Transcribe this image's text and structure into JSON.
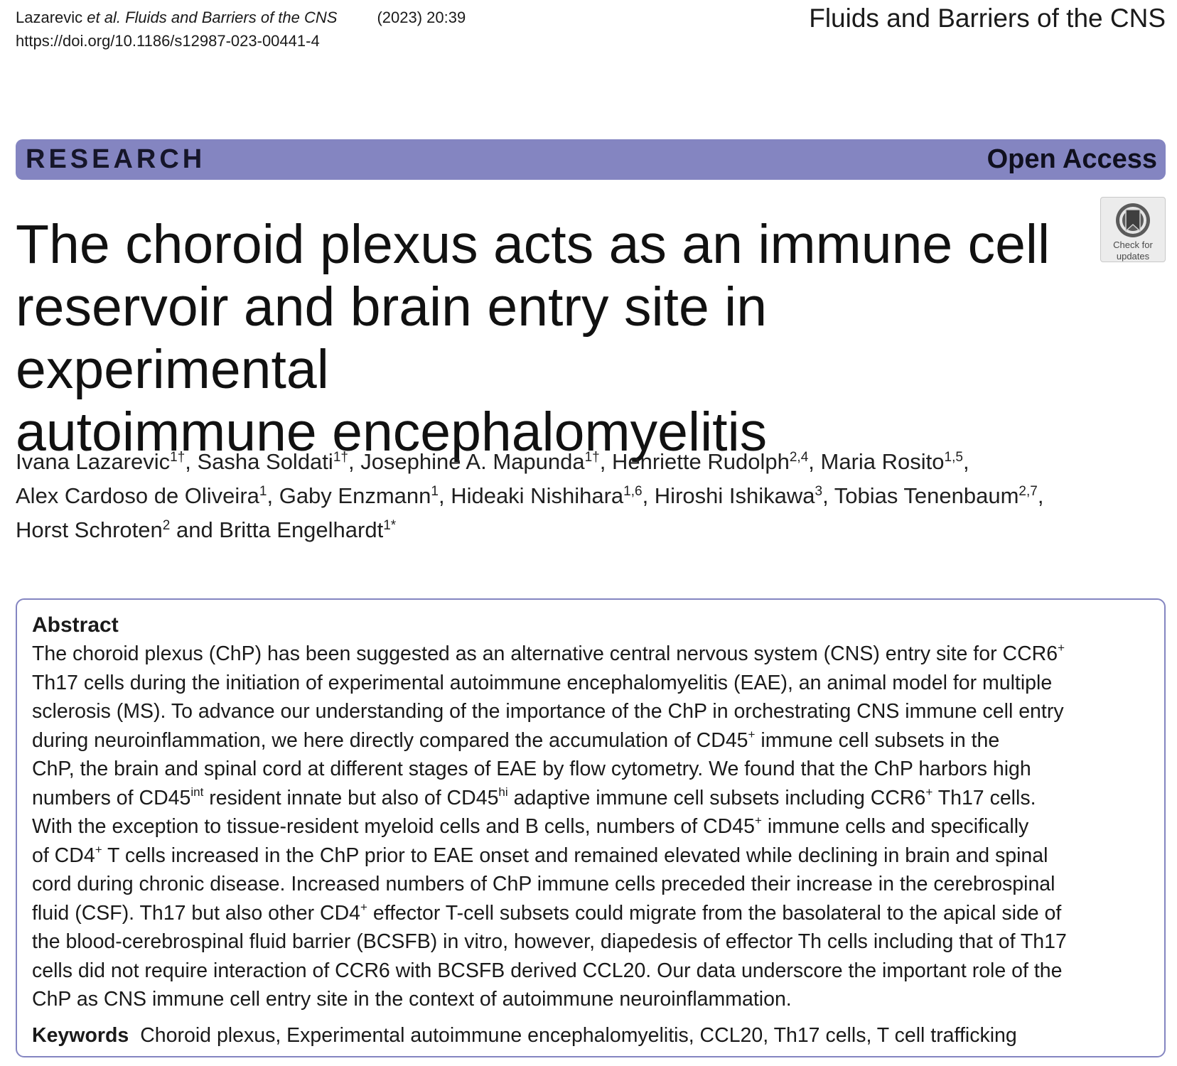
{
  "header": {
    "citation_authors": "Lazarevic ",
    "citation_etal": "et al.",
    "citation_journal": " Fluids and Barriers of the CNS",
    "citation_year": "(2023) 20:39",
    "doi": "https://doi.org/10.1186/s12987-023-00441-4",
    "journal_name": "Fluids and Barriers of the CNS"
  },
  "banner": {
    "type": "RESEARCH",
    "access": "Open Access",
    "color": "#8485c1"
  },
  "badge": {
    "icon": "check-for-updates-icon",
    "line1": "Check for",
    "line2": "updates"
  },
  "title": {
    "line1": "The choroid plexus acts as an immune cell",
    "line2": "reservoir and brain entry site in experimental",
    "line3": "autoimmune encephalomyelitis"
  },
  "authors": [
    {
      "name": "Ivana Lazarevic",
      "aff": "1†",
      "sep": ", "
    },
    {
      "name": "Sasha Soldati",
      "aff": "1†",
      "sep": ", "
    },
    {
      "name": "Josephine A. Mapunda",
      "aff": "1†",
      "sep": ", "
    },
    {
      "name": "Henriette Rudolph",
      "aff": "2,4",
      "sep": ", "
    },
    {
      "name": "Maria Rosito",
      "aff": "1,5",
      "sep": ", "
    },
    {
      "name": "Alex Cardoso de Oliveira",
      "aff": "1",
      "sep": ", "
    },
    {
      "name": "Gaby Enzmann",
      "aff": "1",
      "sep": ", "
    },
    {
      "name": "Hideaki Nishihara",
      "aff": "1,6",
      "sep": ", "
    },
    {
      "name": "Hiroshi Ishikawa",
      "aff": "3",
      "sep": ", "
    },
    {
      "name": "Tobias Tenenbaum",
      "aff": "2,7",
      "sep": ", "
    },
    {
      "name": "Horst Schroten",
      "aff": "2",
      "sep": " and "
    },
    {
      "name": "Britta Engelhardt",
      "aff": "1*",
      "sep": ""
    }
  ],
  "abstract": {
    "heading": "Abstract",
    "l1a": "The choroid plexus (ChP) has been suggested as an alternative central nervous system (CNS) entry site for CCR6",
    "l1sup": "+",
    "l2": "Th17 cells during the initiation of experimental autoimmune encephalomyelitis (EAE), an animal model for multiple",
    "l3": "sclerosis (MS). To advance our understanding of the importance of the ChP in orchestrating CNS immune cell entry",
    "l4a": "during neuroinflammation, we here directly compared the accumulation of CD45",
    "l4sup": "+",
    "l4b": " immune cell subsets in the",
    "l5": "ChP, the brain and spinal cord at different stages of EAE by flow cytometry. We found that the ChP harbors high",
    "l6a": "numbers of CD45",
    "l6sup1": "int",
    "l6b": " resident innate but also of CD45",
    "l6sup2": "hi",
    "l6c": " adaptive immune cell subsets including CCR6",
    "l6sup3": "+",
    "l6d": " Th17 cells.",
    "l7a": "With the exception to tissue-resident myeloid cells and B cells, numbers of CD45",
    "l7sup": "+",
    "l7b": " immune cells and specifically",
    "l8a": "of CD4",
    "l8sup": "+",
    "l8b": " T cells increased in the ChP prior to EAE onset and remained elevated while declining in brain and spinal",
    "l9": "cord during chronic disease. Increased numbers of ChP immune cells preceded their increase in the cerebrospinal",
    "l10a": "fluid (CSF). Th17 but also other CD4",
    "l10sup": "+",
    "l10b": " effector T-cell subsets could migrate from the basolateral to the apical side of",
    "l11": "the blood-cerebrospinal fluid barrier (BCSFB) in vitro, however, diapedesis of effector Th cells including that of Th17",
    "l12": "cells did not require interaction of CCR6 with BCSFB derived CCL20. Our data underscore the important role of the",
    "l13": "ChP as CNS immune cell entry site in the context of autoimmune neuroinflammation."
  },
  "keywords": {
    "label": "Keywords",
    "text": "Choroid plexus, Experimental autoimmune encephalomyelitis, CCL20, Th17 cells, T cell trafficking"
  }
}
